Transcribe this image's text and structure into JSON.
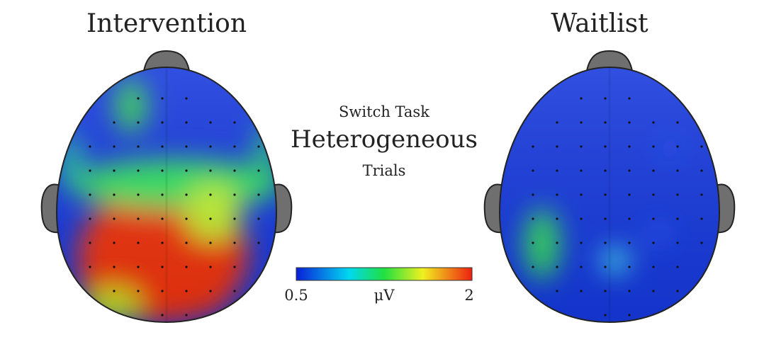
{
  "panels": [
    {
      "title": "Intervention"
    },
    {
      "title": "Waitlist"
    }
  ],
  "center": {
    "line1": "Switch Task",
    "line2": "Heterogeneous",
    "line3": "Trials"
  },
  "colorbar": {
    "min": "0.5",
    "unit": "μV",
    "max": "2"
  }
}
